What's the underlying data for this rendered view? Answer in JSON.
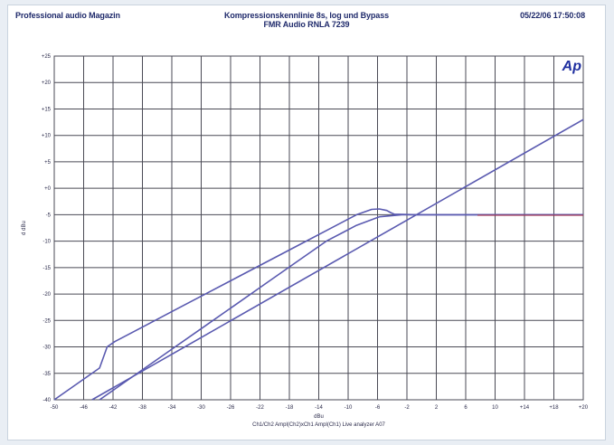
{
  "header": {
    "left": "Professional audio Magazin",
    "center_line1": "Kompressionskennlinie 8s, log und Bypass",
    "center_line2": "FMR Audio RNLA 7239",
    "right": "05/22/06 17:50:08"
  },
  "logo": "Ap",
  "colors": {
    "grid": "#4a4a55",
    "curve": "#5a5ab0",
    "flat_segment": "#b03040",
    "background": "#ffffff"
  },
  "chart_data": {
    "type": "line",
    "xlabel": "dBu",
    "ylabel": "d dBu",
    "footer": "Ch1/Ch2 Ampl(Ch2)xCh1 Ampl(Ch1) Live analyzer A07",
    "xlim": [
      -50,
      20
    ],
    "ylim": [
      -40,
      25
    ],
    "xticks": [
      "-50",
      "-46",
      "-42",
      "-38",
      "-34",
      "-30",
      "-26",
      "-22",
      "-18",
      "-14",
      "-10",
      "-6",
      "-2",
      "2",
      "6",
      "10",
      "+14",
      "+18",
      "+20"
    ],
    "yticks": [
      "+25",
      "+20",
      "+15",
      "+10",
      "+5",
      "+0",
      "-5",
      "-10",
      "-15",
      "-20",
      "-25",
      "-30",
      "-35",
      "-40"
    ],
    "series": [
      {
        "x": [
          -50,
          -44,
          -43,
          -42,
          -38,
          -34,
          -30,
          -26,
          -22,
          -18,
          -14,
          -10,
          -8,
          -7,
          -6,
          -5.5,
          -5,
          -2,
          2,
          6,
          10,
          14,
          20
        ],
        "y": [
          -40,
          -34,
          -30,
          -29,
          -26,
          -23,
          -20,
          -17,
          -14,
          -11,
          -8,
          -5,
          -4,
          -3.9,
          -4.2,
          -4.6,
          -4.9,
          -5,
          -5,
          -5,
          -5,
          -5,
          -5
        ]
      },
      {
        "x": [
          -44,
          -38,
          -34,
          -30,
          -26,
          -22,
          -18,
          -14,
          -10,
          -7,
          -4,
          -2,
          2,
          6,
          10,
          14,
          20
        ],
        "y": [
          -40,
          -34,
          -30,
          -26,
          -22,
          -18,
          -14,
          -10,
          -7,
          -5.4,
          -5,
          -5,
          -5,
          -5,
          -5,
          -5,
          -5
        ]
      },
      {
        "x": [
          -45,
          20
        ],
        "y": [
          -40,
          13
        ]
      }
    ]
  }
}
